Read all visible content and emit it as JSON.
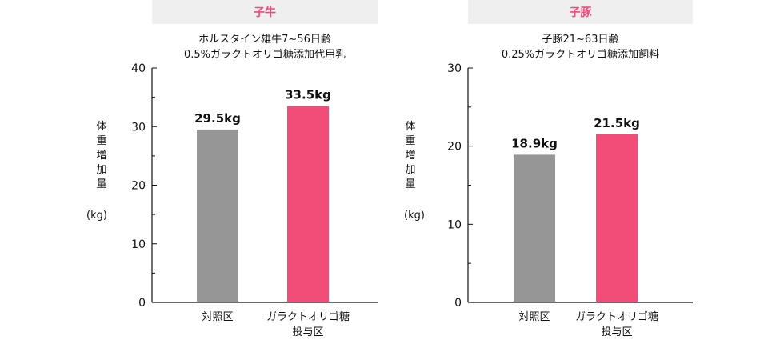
{
  "chart_data": [
    {
      "type": "bar",
      "header": "子牛",
      "title": "ホルスタイン雄牛7~56日齢\n0.5%ガラクトオリゴ糖添加代用乳",
      "ylabel": "体重増加量",
      "unit": "(kg)",
      "ylim": [
        0,
        40
      ],
      "yticks": [
        0,
        10,
        20,
        30,
        40
      ],
      "categories": [
        "対照区",
        "ガラクトオリゴ糖\n投与区"
      ],
      "values": [
        29.5,
        33.5
      ],
      "value_labels": [
        "29.5kg",
        "33.5kg"
      ],
      "colors": [
        "#969696",
        "#f24c79"
      ]
    },
    {
      "type": "bar",
      "header": "子豚",
      "title": "子豚21~63日齢\n0.25%ガラクトオリゴ糖添加飼料",
      "ylabel": "体重増加量",
      "unit": "(kg)",
      "ylim": [
        0,
        30
      ],
      "yticks": [
        0,
        10,
        20,
        30
      ],
      "categories": [
        "対照区",
        "ガラクトオリゴ糖\n投与区"
      ],
      "values": [
        18.9,
        21.5
      ],
      "value_labels": [
        "18.9kg",
        "21.5kg"
      ],
      "colors": [
        "#969696",
        "#f24c79"
      ]
    }
  ]
}
